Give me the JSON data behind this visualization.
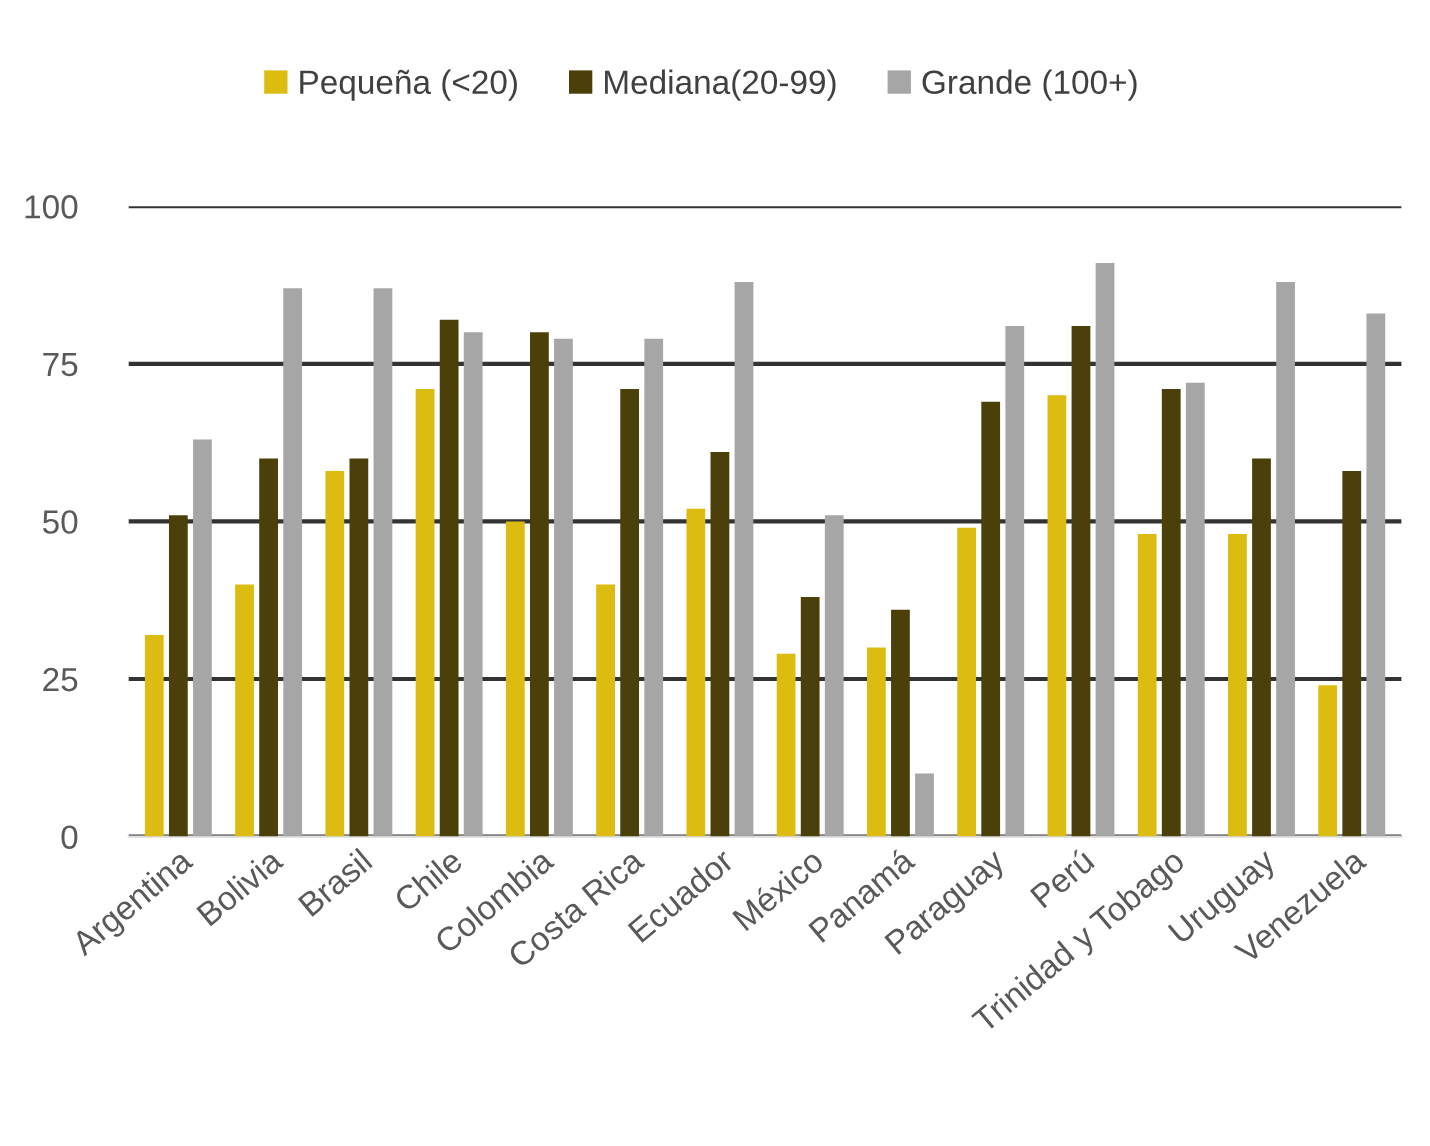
{
  "chart_data": {
    "type": "bar",
    "categories": [
      "Argentina",
      "Bolivia",
      "Brasil",
      "Chile",
      "Colombia",
      "Costa Rica",
      "Ecuador",
      "México",
      "Panamá",
      "Paraguay",
      "Perú",
      "Trinidad y Tobago",
      "Uruguay",
      "Venezuela"
    ],
    "series": [
      {
        "name": "Pequeña (<20)",
        "color": "#dcbc10",
        "values": [
          32,
          40,
          58,
          71,
          50,
          40,
          52,
          29,
          30,
          49,
          70,
          48,
          48,
          24
        ]
      },
      {
        "name": "Mediana(20-99)",
        "color": "#4b400a",
        "values": [
          51,
          60,
          60,
          82,
          80,
          71,
          61,
          38,
          36,
          69,
          81,
          71,
          60,
          58
        ]
      },
      {
        "name": "Grande (100+)",
        "color": "#a6a6a6",
        "values": [
          63,
          87,
          87,
          80,
          79,
          79,
          88,
          51,
          10,
          81,
          91,
          72,
          88,
          83
        ]
      }
    ],
    "ylim": [
      0,
      100
    ],
    "yticks": [
      0,
      25,
      50,
      75,
      100
    ],
    "grid": "y",
    "legend": "top"
  }
}
